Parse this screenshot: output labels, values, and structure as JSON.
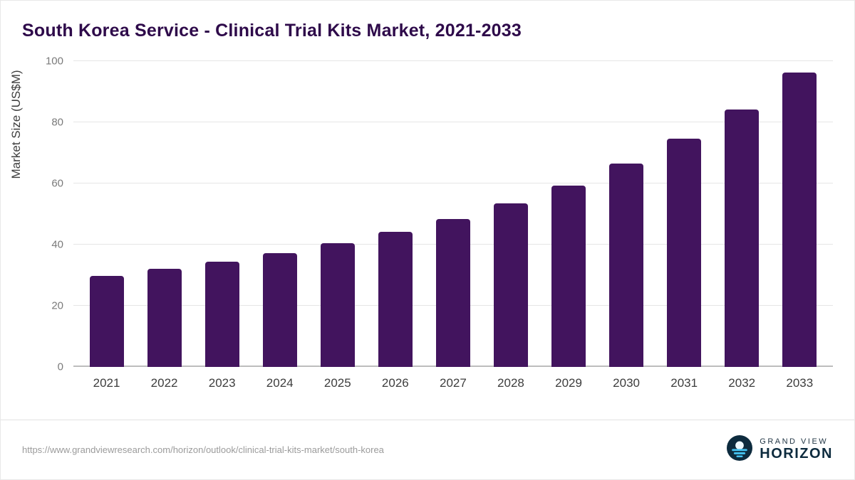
{
  "chart_data": {
    "type": "bar",
    "title": "South Korea Service - Clinical Trial Kits Market, 2021-2033",
    "categories": [
      "2021",
      "2022",
      "2023",
      "2024",
      "2025",
      "2026",
      "2027",
      "2028",
      "2029",
      "2030",
      "2031",
      "2032",
      "2033"
    ],
    "values": [
      29.7,
      32.1,
      34.4,
      37.2,
      40.4,
      44.1,
      48.4,
      53.6,
      59.4,
      66.5,
      74.6,
      84.2,
      96.2
    ],
    "xlabel": "",
    "ylabel": "Market Size (US$M)",
    "ylim": [
      0,
      100
    ],
    "yticks": [
      0,
      20,
      40,
      60,
      80,
      100
    ],
    "grid": true,
    "legend": false,
    "bar_color": "#42145e"
  },
  "footer": {
    "source_url": "https://www.grandviewresearch.com/horizon/outlook/clinical-trial-kits-market/south-korea",
    "logo": {
      "line1": "GRAND VIEW",
      "line2": "HORIZON",
      "icon": "horizon-sun-icon",
      "icon_bg": "#0d2b3e",
      "icon_accent": "#45c2f0"
    }
  },
  "colors": {
    "title": "#2e0a4a",
    "gridline": "#e6e6e6",
    "axis": "#bdbdbd",
    "tick_label": "#7a7a7a",
    "x_label": "#3d3d3d",
    "background": "#ffffff"
  }
}
